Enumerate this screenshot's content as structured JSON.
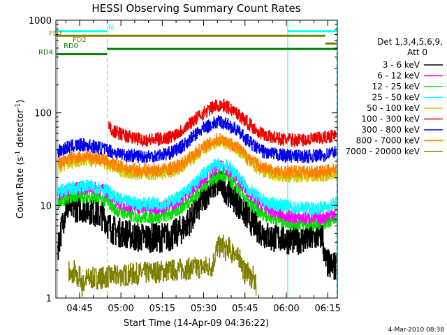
{
  "chart_data": {
    "type": "line",
    "title": "HESSI Observing Summary Count Rates",
    "xlabel": "Start Time (14-Apr-09 04:36:22)",
    "ylabel_main": "Count Rate (s",
    "ylabel_sup1": "-1",
    "ylabel_mid": " detector",
    "ylabel_sup2": "-1",
    "ylabel_end": ")",
    "yscale": "log",
    "ylim": [
      1,
      1000
    ],
    "xlim_minutes": [
      36.4,
      138.5
    ],
    "x_ticks": [
      {
        "minute": 45,
        "label": "04:45"
      },
      {
        "minute": 60,
        "label": "05:00"
      },
      {
        "minute": 75,
        "label": "05:15"
      },
      {
        "minute": 90,
        "label": "05:30"
      },
      {
        "minute": 105,
        "label": "05:45"
      },
      {
        "minute": 120,
        "label": "06:00"
      },
      {
        "minute": 135,
        "label": "06:15"
      }
    ],
    "y_ticks": [
      {
        "value": 1,
        "label": "1"
      },
      {
        "value": 10,
        "label": "10"
      },
      {
        "value": 100,
        "label": "100"
      },
      {
        "value": 1000,
        "label": "1000"
      }
    ],
    "legend_header": [
      "Det 1,3,4,5,6,9,",
      "Att 0"
    ],
    "series": [
      {
        "name": "3 - 6 keV",
        "color": "#000000",
        "x": [
          37,
          40,
          43,
          46,
          49,
          52,
          54,
          55.5,
          58,
          62,
          66,
          70,
          74,
          78,
          82,
          86,
          90,
          92,
          94,
          96,
          98,
          100,
          102,
          106,
          110,
          114,
          118,
          120,
          122,
          126,
          130,
          133,
          134,
          136,
          138
        ],
        "y": [
          3.5,
          9.5,
          9.5,
          9.5,
          9.0,
          8.0,
          7.5,
          6.0,
          5.2,
          5.0,
          4.5,
          4.5,
          4.5,
          4.6,
          5.5,
          7.5,
          12,
          15,
          17,
          17,
          15,
          13,
          11,
          7.5,
          5.5,
          4.5,
          4.5,
          4.3,
          4.3,
          4.3,
          4.5,
          4.8,
          2.5,
          2.2,
          2.2
        ]
      },
      {
        "name": "6 - 12 keV",
        "color": "#ff00ff",
        "x": [
          37,
          40,
          43,
          46,
          49,
          52,
          55,
          58,
          62,
          66,
          70,
          74,
          78,
          82,
          86,
          90,
          94,
          96,
          98,
          102,
          106,
          110,
          114,
          118,
          122,
          126,
          130,
          134,
          136,
          138
        ],
        "y": [
          13,
          14.5,
          15,
          15.5,
          15.5,
          15,
          14,
          11,
          10,
          9.5,
          9.5,
          9.5,
          10,
          12,
          15,
          20,
          25,
          26,
          25,
          20,
          14,
          10.5,
          9,
          8,
          7.5,
          7.3,
          7.3,
          7.5,
          8,
          8.5
        ]
      },
      {
        "name": "12 - 25 keV",
        "color": "#00e000",
        "x": [
          37,
          40,
          43,
          46,
          49,
          52,
          55,
          58,
          62,
          66,
          70,
          74,
          78,
          82,
          86,
          90,
          94,
          96,
          98,
          102,
          106,
          110,
          114,
          118,
          122,
          126,
          130,
          134,
          136,
          138
        ],
        "y": [
          10.5,
          12,
          12.5,
          12.5,
          12.5,
          12,
          11,
          9,
          8,
          7.5,
          7.5,
          7.5,
          8,
          9.5,
          12,
          16,
          20,
          21,
          20,
          16,
          11,
          8.5,
          7.5,
          6.8,
          6.5,
          6.3,
          6.3,
          6.5,
          7,
          7.5
        ]
      },
      {
        "name": "25 - 50 keV",
        "color": "#00ffff",
        "x": [
          37,
          40,
          43,
          46,
          49,
          52,
          55,
          58,
          62,
          66,
          70,
          74,
          78,
          82,
          86,
          90,
          94,
          96,
          98,
          102,
          106,
          110,
          114,
          118,
          122,
          126,
          130,
          134,
          136,
          138
        ],
        "y": [
          14,
          15,
          15.5,
          16,
          16,
          15.5,
          14.5,
          12,
          11,
          10.5,
          10.5,
          10.5,
          11,
          13,
          16.5,
          22,
          27,
          28,
          27,
          22,
          15,
          12,
          10.5,
          10,
          9.5,
          9.3,
          9.3,
          9.5,
          10,
          10.5
        ]
      },
      {
        "name": "50 - 100 keV",
        "color": "#cccc00",
        "x": [
          37,
          40,
          43,
          46,
          49,
          52,
          55,
          58,
          62,
          66,
          70,
          74,
          78,
          82,
          86,
          90,
          94,
          96,
          98,
          102,
          106,
          110,
          114,
          118,
          122,
          126,
          130,
          134,
          136,
          138
        ],
        "y": [
          25,
          28,
          30,
          31,
          31,
          30,
          28,
          25,
          23,
          22,
          22,
          22,
          23,
          26,
          32,
          40,
          47,
          49,
          47,
          40,
          31,
          25,
          22,
          21,
          21,
          21,
          21,
          21,
          22,
          22
        ]
      },
      {
        "name": "100 - 300 keV",
        "color": "#ee0000",
        "x": [
          55.5,
          58,
          62,
          66,
          70,
          74,
          78,
          82,
          86,
          90,
          94,
          96,
          98,
          102,
          106,
          110,
          114,
          118,
          122,
          126,
          130,
          134,
          136,
          138
        ],
        "y": [
          70,
          62,
          56,
          52,
          51,
          52,
          55,
          65,
          82,
          100,
          118,
          122,
          118,
          100,
          78,
          62,
          55,
          52,
          51,
          51,
          52,
          54,
          56,
          58
        ]
      },
      {
        "name": "300 - 800 keV",
        "color": "#0000ee",
        "x": [
          37,
          40,
          43,
          46,
          49,
          52,
          55,
          58,
          62,
          66,
          70,
          74,
          78,
          82,
          86,
          90,
          94,
          96,
          98,
          102,
          106,
          110,
          114,
          118,
          122,
          126,
          130,
          134,
          136,
          138
        ],
        "y": [
          38,
          42,
          44,
          45,
          44,
          42,
          40,
          37,
          35,
          34,
          34,
          35,
          37,
          43,
          55,
          68,
          78,
          80,
          77,
          65,
          50,
          40,
          36,
          35,
          34,
          34,
          34,
          35,
          37,
          38
        ]
      },
      {
        "name": "800 - 7000 keV",
        "color": "#ff8000",
        "x": [
          37,
          40,
          43,
          46,
          49,
          52,
          55,
          58,
          62,
          66,
          70,
          74,
          78,
          82,
          86,
          90,
          94,
          96,
          98,
          102,
          106,
          110,
          114,
          118,
          122,
          126,
          130,
          134,
          136,
          138
        ],
        "y": [
          28,
          31,
          33,
          34,
          33,
          32,
          30,
          27,
          25,
          24,
          24,
          24,
          25,
          28,
          35,
          43,
          50,
          52,
          50,
          43,
          33,
          27,
          24,
          23,
          23,
          23,
          23,
          23,
          24,
          25
        ]
      },
      {
        "name": "7000 - 20000 keV",
        "color": "#808000",
        "x": [
          41,
          42,
          43,
          44,
          45,
          46,
          47,
          93,
          94,
          95,
          96,
          97,
          98,
          99,
          100,
          101,
          102,
          103,
          104,
          105,
          106,
          107,
          108,
          109
        ],
        "y": [
          2.0,
          1.6,
          2.0,
          1.5,
          1.8,
          1.3,
          1.6,
          2.2,
          2.8,
          3.6,
          3.5,
          3.8,
          3.2,
          3.6,
          3.0,
          3.4,
          2.6,
          2.8,
          2.2,
          1.8,
          2.1,
          1.5,
          1.7,
          1.3
        ]
      }
    ],
    "attenuator_bars": [
      {
        "label": "N",
        "color": "#00ffff",
        "segments": [
          [
            36.6,
            55.0
          ],
          [
            120.5,
            138.3
          ]
        ],
        "level": 760
      },
      {
        "label": "FD1",
        "color": "#808000",
        "segments": [
          [
            36.6,
            134.2
          ]
        ],
        "level": 680
      },
      {
        "label": "FD2",
        "color": "#808000",
        "segments": [
          [
            134.2,
            138.3
          ]
        ],
        "level": 560
      },
      {
        "label": "RD0",
        "color": "#008000",
        "segments": [
          [
            55.0,
            138.3
          ]
        ],
        "level": 490
      },
      {
        "label": "RD4",
        "color": "#008000",
        "segments": [
          [
            36.6,
            55.0
          ]
        ],
        "level": 430
      }
    ],
    "vlines_solid": [
      37.0,
      120.5
    ],
    "vlines_dashed": [
      55.0,
      138.3
    ],
    "grid": false,
    "legend_position": "right"
  },
  "footer_date": "4-Mar-2010 08:38"
}
